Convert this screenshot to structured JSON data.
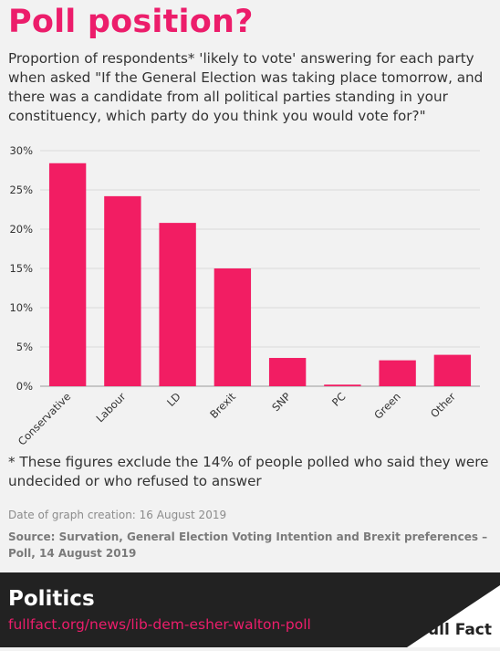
{
  "header": {
    "title": "Poll position?",
    "subtitle": "Proportion of respondents* 'likely to vote' answering for each party when asked \"If the General Election was taking place tomorrow, and there was a candidate from all political parties standing in your constituency, which party do you think you would vote for?\""
  },
  "footnote": "* These figures exclude the 14% of people polled who said they were undecided or who refused to answer",
  "date_created": "Date of graph creation: 16 August 2019",
  "source": "Source: Survation, General Election Voting Intention and Brexit preferences – Poll, 14 August 2019",
  "footer": {
    "section": "Politics",
    "url": "fullfact.org/news/lib-dem-esher-walton-poll",
    "logo_text": "Full Fact"
  },
  "colors": {
    "accent": "#ec1d6b",
    "bar": "#f21d63",
    "footer_bg": "#222222"
  },
  "chart_data": {
    "type": "bar",
    "categories": [
      "Conservative",
      "Labour",
      "LD",
      "Brexit",
      "SNP",
      "PC",
      "Green",
      "Other"
    ],
    "values": [
      28.4,
      24.2,
      20.8,
      15.0,
      3.6,
      0.2,
      3.3,
      4.0
    ],
    "ylim": [
      0,
      30
    ],
    "yticks": [
      0,
      5,
      10,
      15,
      20,
      25,
      30
    ],
    "ytick_labels": [
      "0%",
      "5%",
      "10%",
      "15%",
      "20%",
      "25%",
      "30%"
    ],
    "grid": true,
    "xlabel": "",
    "ylabel": ""
  }
}
